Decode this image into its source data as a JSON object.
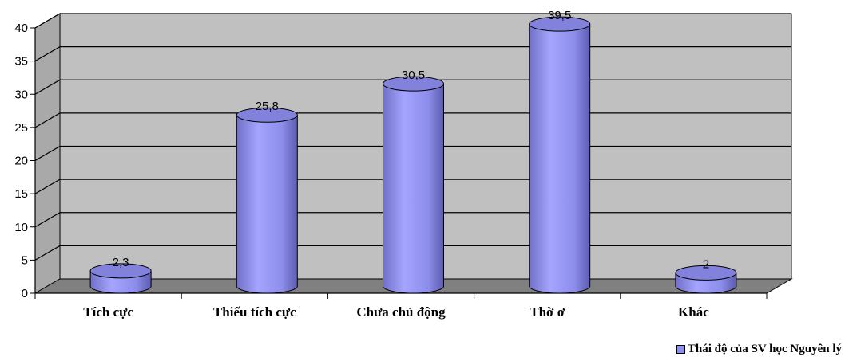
{
  "chart_data": {
    "type": "bar",
    "style": "3d-cylinder",
    "categories": [
      "Tích cực",
      "Thiếu tích cực",
      "Chưa chủ động",
      "Thờ ơ",
      "Khác"
    ],
    "series": [
      {
        "name": "Thái độ của SV học Nguyên lý",
        "values": [
          2.3,
          25.8,
          30.5,
          39.5,
          2
        ]
      }
    ],
    "data_labels": [
      "2,3",
      "25,8",
      "30,5",
      "39,5",
      "2"
    ],
    "yticks": [
      "0",
      "5",
      "10",
      "15",
      "20",
      "25",
      "30",
      "35",
      "40"
    ],
    "ylim": [
      0,
      40
    ],
    "grid": true,
    "legend": "bottom-right",
    "colors": {
      "bar_body": "#8f8fef",
      "bar_top": "#8282dc",
      "wall": "#c0c0c0",
      "floor": "#808080",
      "grid": "#000000"
    }
  }
}
